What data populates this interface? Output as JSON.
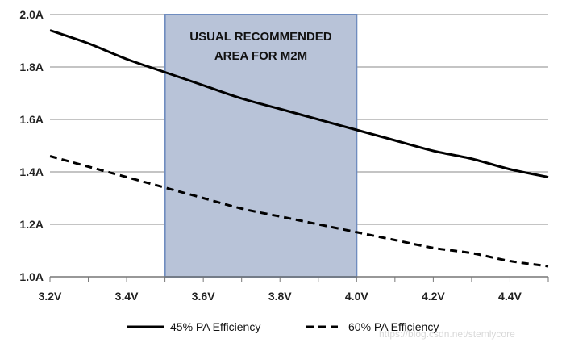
{
  "chart_data": {
    "type": "line",
    "title": "",
    "xlabel": "",
    "ylabel": "",
    "xlim": [
      3.2,
      4.5
    ],
    "ylim": [
      1.0,
      2.0
    ],
    "x_ticks": [
      3.2,
      3.4,
      3.6,
      3.8,
      4.0,
      4.2,
      4.4
    ],
    "x_tick_labels": [
      "3.2V",
      "3.4V",
      "3.6V",
      "3.8V",
      "4.0V",
      "4.2V",
      "4.4V"
    ],
    "y_ticks": [
      1.0,
      1.2,
      1.4,
      1.6,
      1.8,
      2.0
    ],
    "y_tick_labels": [
      "1.0A",
      "1.2A",
      "1.4A",
      "1.6A",
      "1.8A",
      "2.0A"
    ],
    "grid": true,
    "legend_position": "bottom",
    "series": [
      {
        "name": "45% PA Efficiency",
        "line_style": "solid",
        "color": "#000000",
        "x": [
          3.2,
          3.3,
          3.4,
          3.5,
          3.6,
          3.7,
          3.8,
          3.9,
          4.0,
          4.1,
          4.2,
          4.3,
          4.4,
          4.5
        ],
        "y": [
          1.94,
          1.89,
          1.83,
          1.78,
          1.73,
          1.68,
          1.64,
          1.6,
          1.56,
          1.52,
          1.48,
          1.45,
          1.41,
          1.38
        ]
      },
      {
        "name": "60% PA Efficiency",
        "line_style": "dashed",
        "color": "#000000",
        "x": [
          3.2,
          3.3,
          3.4,
          3.5,
          3.6,
          3.7,
          3.8,
          3.9,
          4.0,
          4.1,
          4.2,
          4.3,
          4.4,
          4.5
        ],
        "y": [
          1.46,
          1.42,
          1.38,
          1.34,
          1.3,
          1.26,
          1.23,
          1.2,
          1.17,
          1.14,
          1.11,
          1.09,
          1.06,
          1.04
        ]
      }
    ],
    "annotations": [
      {
        "type": "shaded_region",
        "x_range": [
          3.5,
          4.0
        ],
        "label_lines": [
          "USUAL RECOMMENDED",
          "AREA FOR M2M"
        ],
        "fill_color": "#b8c3d8",
        "border_color": "#6f8cbf"
      }
    ]
  },
  "watermark": "https://blog.csdn.net/stemlycore"
}
